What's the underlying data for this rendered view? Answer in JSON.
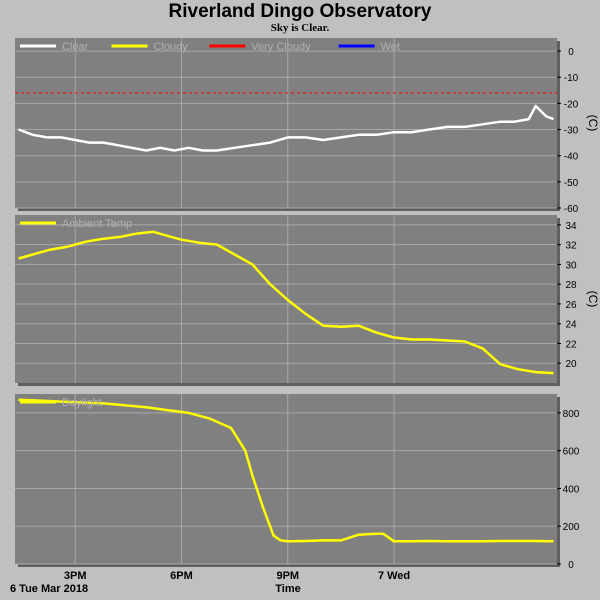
{
  "title": "Riverland Dingo Observatory",
  "subtitle": "Sky is Clear.",
  "x_axis": {
    "label": "Time",
    "start_label": "6 Tue Mar 2018",
    "ticks": [
      {
        "t": 15,
        "label": "3PM"
      },
      {
        "t": 18,
        "label": "6PM"
      },
      {
        "t": 21,
        "label": "9PM"
      },
      {
        "t": 24,
        "label": "7 Wed"
      }
    ],
    "range": [
      13.3,
      28.6
    ]
  },
  "colors": {
    "panel_bg": "#808080",
    "page_bg": "#c0c0c0",
    "grid": "#a8a8a8",
    "clear": "#ffffff",
    "cloudy": "#ffff00",
    "very_cloudy": "#ff0000",
    "wet": "#0000ff"
  },
  "chart_data": [
    {
      "type": "line",
      "panel": "sky-temperature",
      "unit": "(C)",
      "ylim": [
        -60,
        5
      ],
      "yticks": [
        0,
        -10,
        -20,
        -30,
        -40,
        -50,
        -60
      ],
      "legend": [
        {
          "name": "Clear",
          "color": "#ffffff"
        },
        {
          "name": "Cloudy",
          "color": "#ffff00"
        },
        {
          "name": "Very Cloudy",
          "color": "#ff0000"
        },
        {
          "name": "Wet",
          "color": "#0000ff"
        }
      ],
      "threshold": {
        "value": -16,
        "color": "#ff0000",
        "style": "dashed"
      },
      "series": [
        {
          "name": "Clear",
          "color": "#ffffff",
          "x": [
            13.4,
            13.8,
            14.2,
            14.6,
            15.0,
            15.4,
            15.8,
            16.2,
            16.6,
            17.0,
            17.4,
            17.8,
            18.2,
            18.6,
            19.0,
            19.5,
            20.0,
            20.5,
            21.0,
            21.5,
            22.0,
            22.5,
            23.0,
            23.5,
            24.0,
            24.5,
            25.0,
            25.5,
            26.0,
            26.5,
            27.0,
            27.4,
            27.8,
            28.0,
            28.3,
            28.5
          ],
          "y": [
            -30,
            -32,
            -33,
            -33,
            -34,
            -35,
            -35,
            -36,
            -37,
            -38,
            -37,
            -38,
            -37,
            -38,
            -38,
            -37,
            -36,
            -35,
            -33,
            -33,
            -34,
            -33,
            -32,
            -32,
            -31,
            -31,
            -30,
            -29,
            -29,
            -28,
            -27,
            -27,
            -26,
            -21,
            -25,
            -26
          ]
        }
      ]
    },
    {
      "type": "line",
      "panel": "ambient-temperature",
      "unit": "(C)",
      "ylim": [
        18,
        35
      ],
      "yticks": [
        34,
        32,
        30,
        28,
        26,
        24,
        22,
        20
      ],
      "legend": [
        {
          "name": "Ambient Temp",
          "color": "#ffff00"
        }
      ],
      "series": [
        {
          "name": "Ambient Temp",
          "color": "#ffff00",
          "x": [
            13.4,
            13.8,
            14.3,
            14.8,
            15.3,
            15.8,
            16.3,
            16.7,
            17.2,
            17.6,
            18.0,
            18.5,
            19.0,
            19.5,
            20.0,
            20.5,
            21.0,
            21.5,
            22.0,
            22.5,
            23.0,
            23.5,
            24.0,
            24.5,
            25.0,
            25.5,
            26.0,
            26.5,
            27.0,
            27.5,
            28.0,
            28.5
          ],
          "y": [
            30.6,
            31.0,
            31.5,
            31.8,
            32.3,
            32.6,
            32.8,
            33.1,
            33.3,
            32.9,
            32.5,
            32.2,
            32.0,
            31.0,
            30.0,
            28.0,
            26.4,
            25.0,
            23.8,
            23.7,
            23.8,
            23.1,
            22.6,
            22.4,
            22.4,
            22.3,
            22.2,
            21.5,
            19.9,
            19.4,
            19.1,
            19.0
          ]
        }
      ]
    },
    {
      "type": "line",
      "panel": "daylight",
      "unit": "",
      "ylim": [
        0,
        900
      ],
      "yticks": [
        800,
        600,
        400,
        200,
        0
      ],
      "legend": [
        {
          "name": "Daylight",
          "color": "#ffff00"
        }
      ],
      "series": [
        {
          "name": "Daylight",
          "color": "#ffff00",
          "x": [
            13.4,
            14.0,
            14.6,
            15.2,
            15.8,
            16.4,
            17.0,
            17.6,
            18.2,
            18.8,
            19.4,
            19.8,
            20.0,
            20.3,
            20.6,
            20.8,
            21.0,
            21.5,
            22.0,
            22.5,
            23.0,
            23.5,
            23.7,
            24.0,
            24.5,
            25.0,
            25.5,
            26.0,
            26.5,
            27.0,
            27.5,
            28.0,
            28.5
          ],
          "y": [
            870,
            865,
            860,
            855,
            850,
            840,
            830,
            815,
            800,
            770,
            720,
            600,
            470,
            300,
            150,
            125,
            120,
            122,
            125,
            125,
            155,
            160,
            160,
            120,
            120,
            122,
            120,
            120,
            120,
            122,
            122,
            122,
            120
          ]
        }
      ]
    }
  ]
}
